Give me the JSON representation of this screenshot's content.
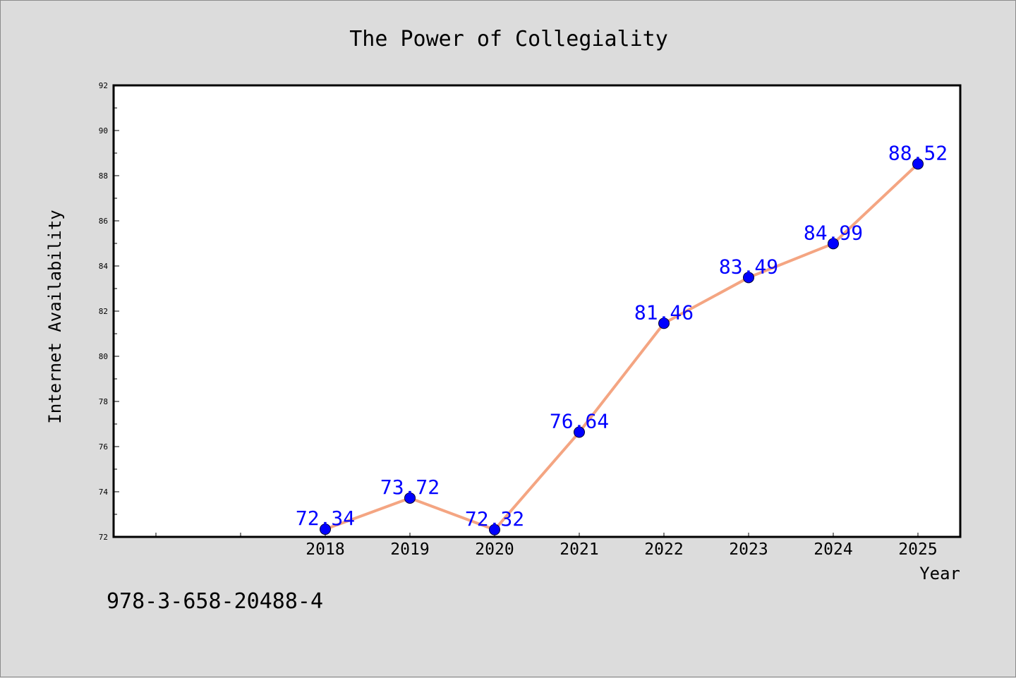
{
  "chart_data": {
    "type": "line",
    "title": "The Power of Collegiality",
    "xlabel": "Year",
    "ylabel": "Internet Availability",
    "categories": [
      "",
      "",
      "2018",
      "2019",
      "2020",
      "2021",
      "2022",
      "2023",
      "2024",
      "2025"
    ],
    "series": [
      {
        "values": [
          null,
          null,
          72.34,
          73.72,
          72.32,
          76.64,
          81.46,
          83.49,
          84.99,
          88.52
        ],
        "labels": [
          "",
          "",
          "72.34",
          "73.72",
          "72.32",
          "76.64",
          "81.46",
          "83.49",
          "84.99",
          "88.52"
        ]
      }
    ],
    "ylim": [
      72,
      92
    ],
    "yticks": [
      "72",
      "74",
      "76",
      "78",
      "80",
      "82",
      "84",
      "86",
      "88",
      "90",
      "92"
    ],
    "grid": false,
    "legend": "none",
    "colors": {
      "line": "#f4a582",
      "marker": "#0000ff",
      "label": "#0000ff"
    }
  },
  "footer": {
    "isbn": "978-3-658-20488-4"
  }
}
